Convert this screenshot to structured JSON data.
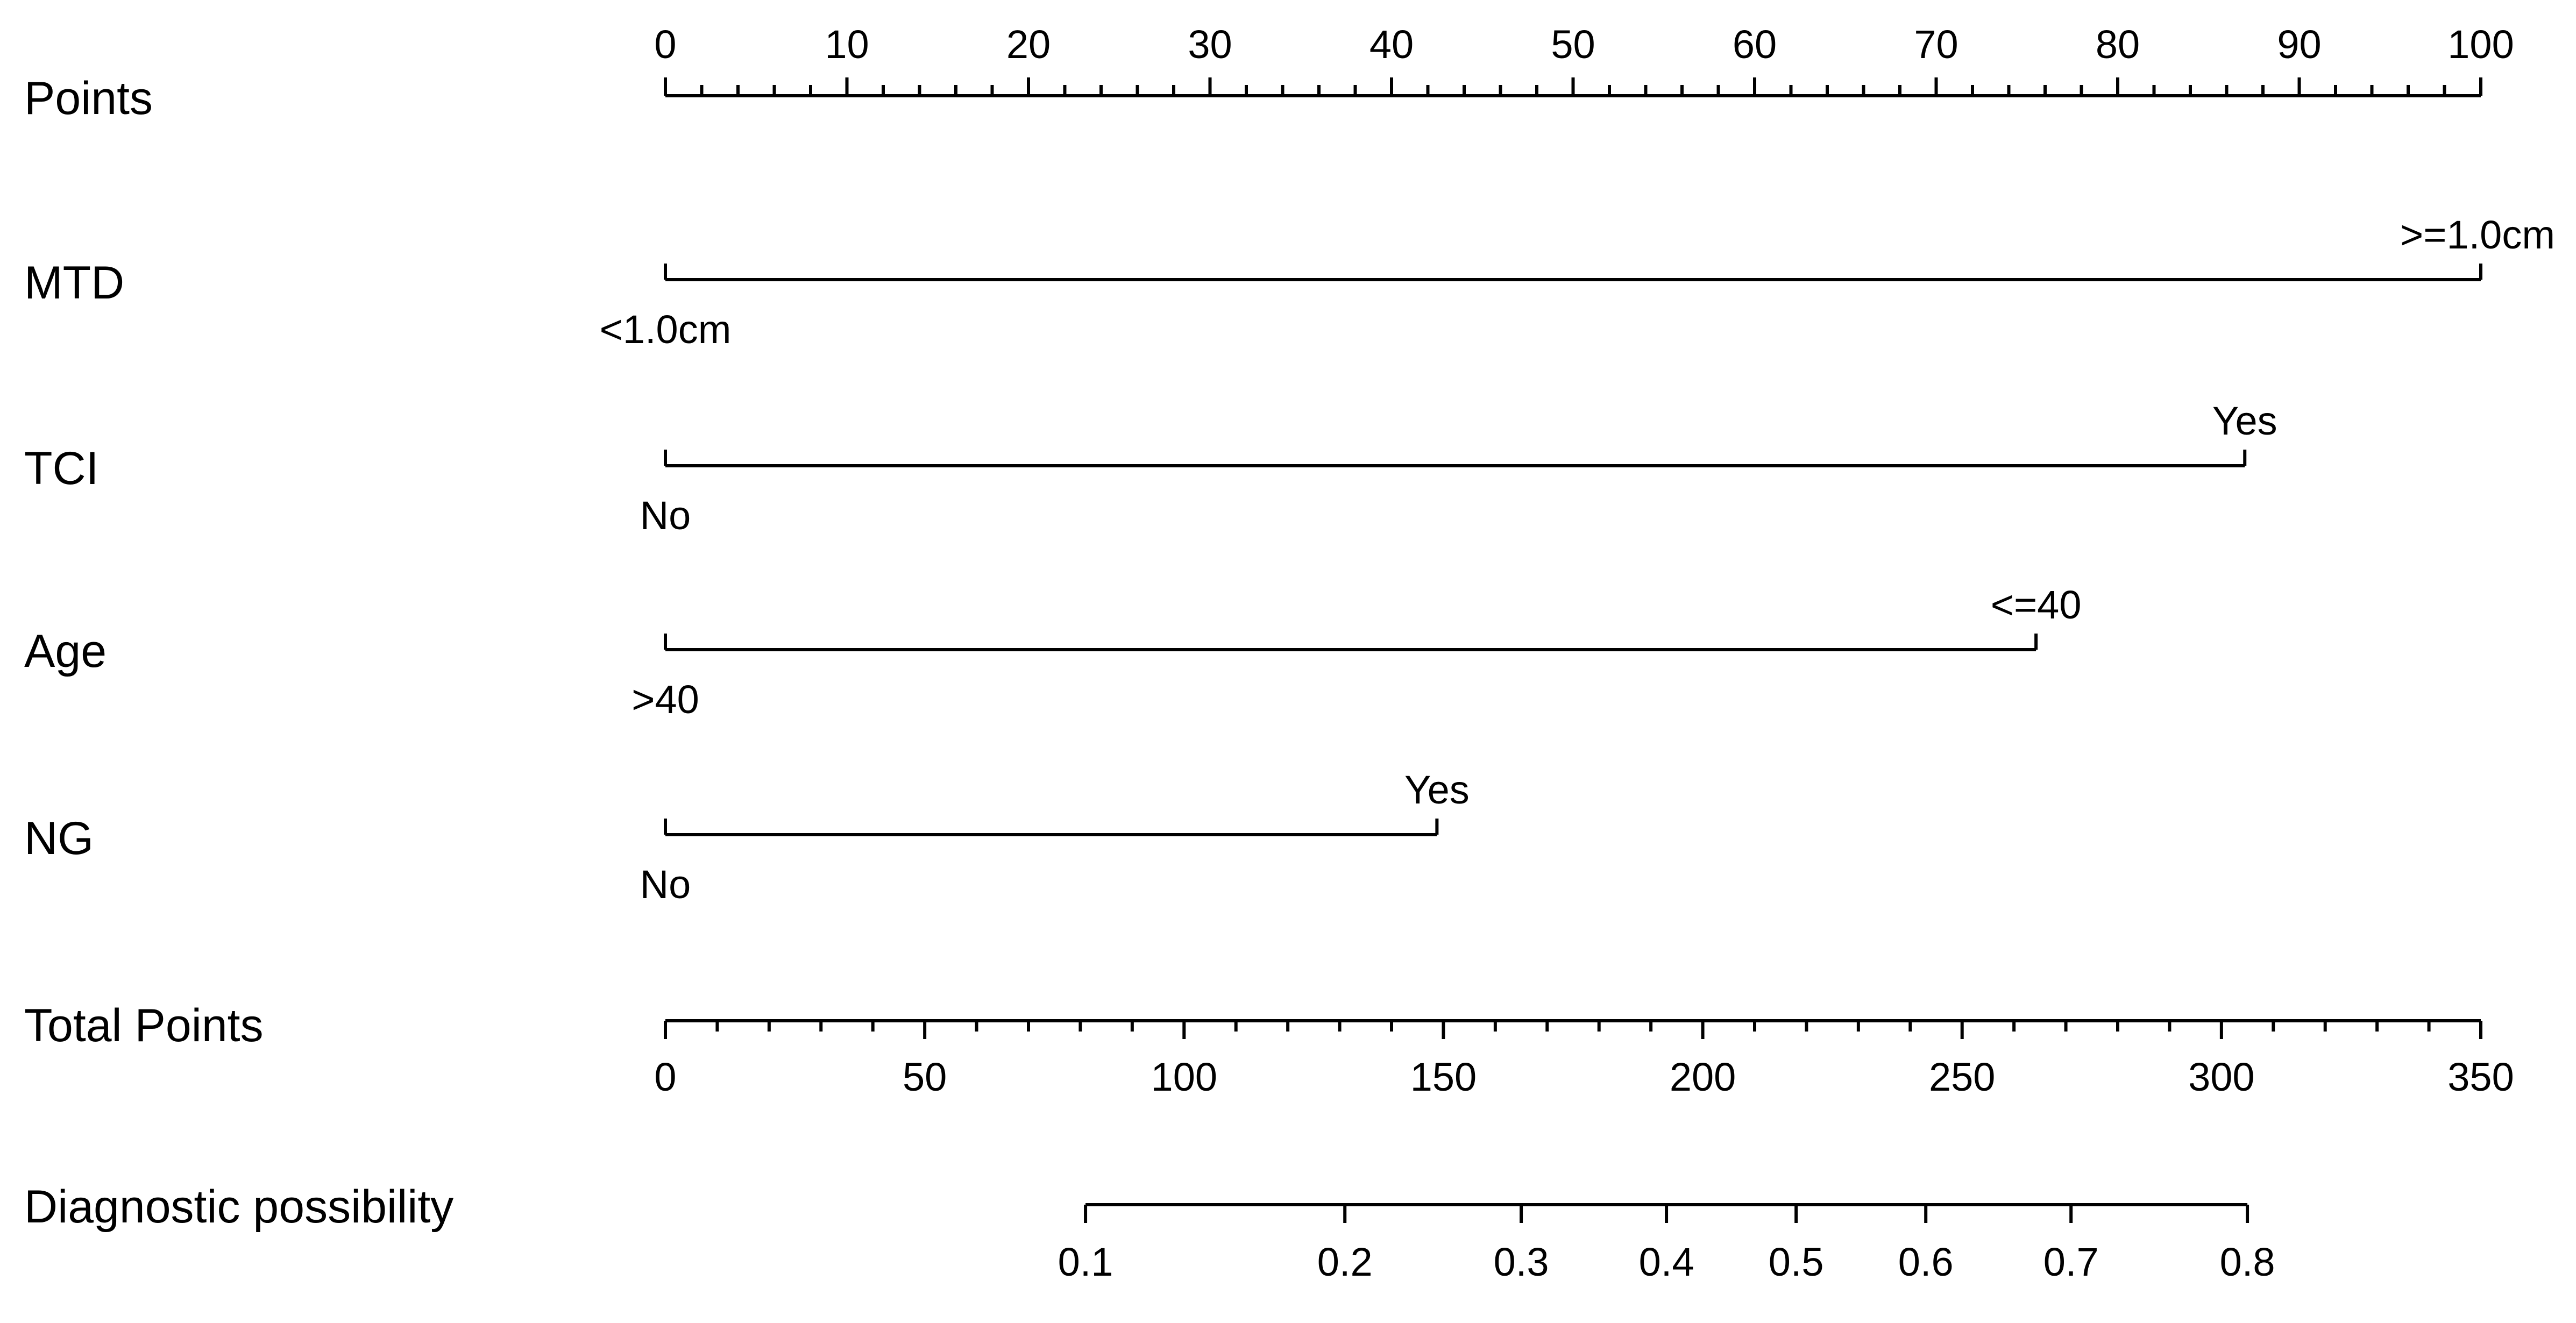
{
  "chart_data": {
    "type": "nomogram",
    "rows": [
      {
        "label": "Points",
        "kind": "scale",
        "min": 0,
        "max": 100,
        "major_ticks": [
          0,
          10,
          20,
          30,
          40,
          50,
          60,
          70,
          80,
          90,
          100
        ],
        "minor_step": 2,
        "tick_labels": [
          "0",
          "10",
          "20",
          "30",
          "40",
          "50",
          "60",
          "70",
          "80",
          "90",
          "100"
        ]
      },
      {
        "label": "MTD",
        "kind": "variable",
        "levels": [
          {
            "label": "<1.0cm",
            "points": 0
          },
          {
            "label": ">=1.0cm",
            "points": 100
          }
        ]
      },
      {
        "label": "TCI",
        "kind": "variable",
        "levels": [
          {
            "label": "No",
            "points": 0
          },
          {
            "label": "Yes",
            "points": 87
          }
        ]
      },
      {
        "label": "Age",
        "kind": "variable",
        "levels": [
          {
            "label": ">40",
            "points": 0
          },
          {
            "label": "<=40",
            "points": 75.5
          }
        ]
      },
      {
        "label": "NG",
        "kind": "variable",
        "levels": [
          {
            "label": "No",
            "points": 0
          },
          {
            "label": "Yes",
            "points": 42.5
          }
        ]
      },
      {
        "label": "Total Points",
        "kind": "scale",
        "min": 0,
        "max": 350,
        "major_ticks": [
          0,
          50,
          100,
          150,
          200,
          250,
          300,
          350
        ],
        "minor_step": 10,
        "tick_labels": [
          "0",
          "50",
          "100",
          "150",
          "200",
          "250",
          "300",
          "350"
        ]
      },
      {
        "label": "Diagnostic possibility",
        "kind": "probability",
        "ticks": [
          {
            "label": "0.1",
            "total_points": 81
          },
          {
            "label": "0.2",
            "total_points": 131
          },
          {
            "label": "0.3",
            "total_points": 165
          },
          {
            "label": "0.4",
            "total_points": 193
          },
          {
            "label": "0.5",
            "total_points": 218
          },
          {
            "label": "0.6",
            "total_points": 243
          },
          {
            "label": "0.7",
            "total_points": 271
          },
          {
            "label": "0.8",
            "total_points": 305
          }
        ]
      }
    ]
  }
}
